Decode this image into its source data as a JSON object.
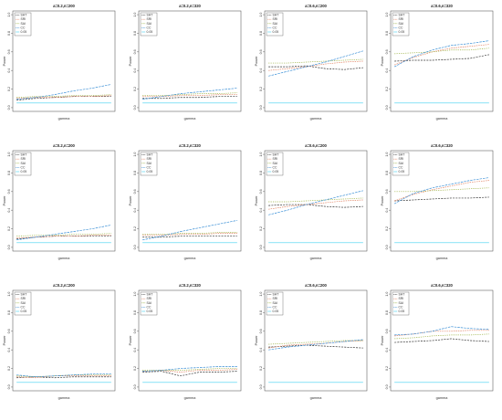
{
  "chart_data": [
    {
      "type": "line",
      "title": "a=0.2,n=200",
      "xlabel": "gamma",
      "ylabel": "Power",
      "ylim": [
        0,
        1
      ],
      "y_ticks": [
        "0.0",
        "0.2",
        "0.4",
        "0.6",
        "0.8",
        "1.0"
      ],
      "legend": [
        "SHT",
        "SRI",
        "SAI",
        "CC",
        "0.05"
      ],
      "x": [
        0,
        1,
        2,
        3,
        4,
        5
      ],
      "series": [
        {
          "name": "SHT",
          "color": "#333333",
          "values": [
            0.08,
            0.1,
            0.11,
            0.12,
            0.12,
            0.12
          ]
        },
        {
          "name": "SRI",
          "color": "#e08060",
          "values": [
            0.1,
            0.11,
            0.11,
            0.12,
            0.12,
            0.13
          ]
        },
        {
          "name": "SAI",
          "color": "#9ab040",
          "values": [
            0.11,
            0.12,
            0.12,
            0.13,
            0.13,
            0.14
          ]
        },
        {
          "name": "CC",
          "color": "#3a8fd6",
          "values": [
            0.09,
            0.11,
            0.14,
            0.18,
            0.21,
            0.25
          ]
        },
        {
          "name": "0.05",
          "color": "#40d0f0",
          "values": [
            0.05,
            0.05,
            0.05,
            0.05,
            0.05,
            0.05
          ]
        }
      ]
    },
    {
      "type": "line",
      "title": "a=0.2,n=320",
      "xlabel": "gamma",
      "ylabel": "Power",
      "ylim": [
        0,
        1
      ],
      "y_ticks": [
        "0.0",
        "0.2",
        "0.4",
        "0.6",
        "0.8",
        "1.0"
      ],
      "legend": [
        "SHT",
        "SRI",
        "SAI",
        "CC",
        "0.05"
      ],
      "x": [
        0,
        1,
        2,
        3,
        4,
        5
      ],
      "series": [
        {
          "name": "SHT",
          "color": "#333333",
          "values": [
            0.1,
            0.1,
            0.11,
            0.11,
            0.12,
            0.12
          ]
        },
        {
          "name": "SRI",
          "color": "#e08060",
          "values": [
            0.12,
            0.12,
            0.13,
            0.13,
            0.14,
            0.14
          ]
        },
        {
          "name": "SAI",
          "color": "#9ab040",
          "values": [
            0.13,
            0.13,
            0.14,
            0.15,
            0.15,
            0.16
          ]
        },
        {
          "name": "CC",
          "color": "#3a8fd6",
          "values": [
            0.09,
            0.12,
            0.15,
            0.17,
            0.19,
            0.21
          ]
        },
        {
          "name": "0.05",
          "color": "#40d0f0",
          "values": [
            0.05,
            0.05,
            0.05,
            0.05,
            0.05,
            0.05
          ]
        }
      ]
    },
    {
      "type": "line",
      "title": "a=0.6,n=200",
      "xlabel": "gamma",
      "ylabel": "Power",
      "ylim": [
        0,
        1
      ],
      "y_ticks": [
        "0.0",
        "0.2",
        "0.4",
        "0.6",
        "0.8",
        "1.0"
      ],
      "legend": [
        "SHT",
        "SRI",
        "SAI",
        "CC",
        "0.05"
      ],
      "x": [
        0,
        1,
        2,
        3,
        4,
        5
      ],
      "series": [
        {
          "name": "SHT",
          "color": "#333333",
          "values": [
            0.44,
            0.44,
            0.45,
            0.42,
            0.41,
            0.43
          ]
        },
        {
          "name": "SRI",
          "color": "#e08060",
          "values": [
            0.4,
            0.42,
            0.44,
            0.47,
            0.49,
            0.5
          ]
        },
        {
          "name": "SAI",
          "color": "#9ab040",
          "values": [
            0.48,
            0.48,
            0.49,
            0.5,
            0.51,
            0.52
          ]
        },
        {
          "name": "CC",
          "color": "#3a8fd6",
          "values": [
            0.34,
            0.39,
            0.44,
            0.49,
            0.55,
            0.61
          ]
        },
        {
          "name": "0.05",
          "color": "#40d0f0",
          "values": [
            0.05,
            0.05,
            0.05,
            0.05,
            0.05,
            0.05
          ]
        }
      ]
    },
    {
      "type": "line",
      "title": "a=0.6,n=320",
      "xlabel": "gamma",
      "ylabel": "Power",
      "ylim": [
        0,
        1
      ],
      "y_ticks": [
        "0.0",
        "0.2",
        "0.4",
        "0.6",
        "0.8",
        "1.0"
      ],
      "legend": [
        "SHT",
        "SRI",
        "SAI",
        "CC",
        "0.05"
      ],
      "x": [
        0,
        1,
        2,
        3,
        4,
        5
      ],
      "series": [
        {
          "name": "SHT",
          "color": "#333333",
          "values": [
            0.5,
            0.51,
            0.51,
            0.52,
            0.53,
            0.57
          ]
        },
        {
          "name": "SRI",
          "color": "#e08060",
          "values": [
            0.46,
            0.54,
            0.6,
            0.64,
            0.66,
            0.68
          ]
        },
        {
          "name": "SAI",
          "color": "#9ab040",
          "values": [
            0.58,
            0.59,
            0.6,
            0.62,
            0.62,
            0.64
          ]
        },
        {
          "name": "CC",
          "color": "#3a8fd6",
          "values": [
            0.44,
            0.55,
            0.62,
            0.67,
            0.69,
            0.72
          ]
        },
        {
          "name": "0.05",
          "color": "#40d0f0",
          "values": [
            0.05,
            0.05,
            0.05,
            0.05,
            0.05,
            0.05
          ]
        }
      ]
    },
    {
      "type": "line",
      "title": "a=0.2,n=200",
      "xlabel": "gamma",
      "ylabel": "Power",
      "ylim": [
        0,
        1
      ],
      "y_ticks": [
        "0.0",
        "0.2",
        "0.4",
        "0.6",
        "0.8",
        "1.0"
      ],
      "legend": [
        "SHT",
        "SRI",
        "SAI",
        "CC",
        "0.05"
      ],
      "x": [
        0,
        1,
        2,
        3,
        4,
        5
      ],
      "series": [
        {
          "name": "SHT",
          "color": "#333333",
          "values": [
            0.09,
            0.11,
            0.12,
            0.12,
            0.12,
            0.12
          ]
        },
        {
          "name": "SRI",
          "color": "#e08060",
          "values": [
            0.1,
            0.11,
            0.12,
            0.12,
            0.13,
            0.13
          ]
        },
        {
          "name": "SAI",
          "color": "#9ab040",
          "values": [
            0.12,
            0.13,
            0.13,
            0.14,
            0.14,
            0.15
          ]
        },
        {
          "name": "CC",
          "color": "#3a8fd6",
          "values": [
            0.08,
            0.11,
            0.14,
            0.17,
            0.2,
            0.24
          ]
        },
        {
          "name": "0.05",
          "color": "#40d0f0",
          "values": [
            0.05,
            0.05,
            0.05,
            0.05,
            0.05,
            0.05
          ]
        }
      ]
    },
    {
      "type": "line",
      "title": "a=0.2,n=320",
      "xlabel": "gamma",
      "ylabel": "Power",
      "ylim": [
        0,
        1
      ],
      "y_ticks": [
        "0.0",
        "0.2",
        "0.4",
        "0.6",
        "0.8",
        "1.0"
      ],
      "legend": [
        "SHT",
        "SRI",
        "SAI",
        "CC",
        "0.05"
      ],
      "x": [
        0,
        1,
        2,
        3,
        4,
        5
      ],
      "series": [
        {
          "name": "SHT",
          "color": "#333333",
          "values": [
            0.11,
            0.11,
            0.12,
            0.12,
            0.12,
            0.12
          ]
        },
        {
          "name": "SRI",
          "color": "#e08060",
          "values": [
            0.13,
            0.13,
            0.14,
            0.14,
            0.15,
            0.15
          ]
        },
        {
          "name": "SAI",
          "color": "#9ab040",
          "values": [
            0.14,
            0.14,
            0.15,
            0.15,
            0.16,
            0.16
          ]
        },
        {
          "name": "CC",
          "color": "#3a8fd6",
          "values": [
            0.08,
            0.12,
            0.17,
            0.21,
            0.25,
            0.29
          ]
        },
        {
          "name": "0.05",
          "color": "#40d0f0",
          "values": [
            0.05,
            0.05,
            0.05,
            0.05,
            0.05,
            0.05
          ]
        }
      ]
    },
    {
      "type": "line",
      "title": "a=0.6,n=200",
      "xlabel": "gamma",
      "ylabel": "Power",
      "ylim": [
        0,
        1
      ],
      "y_ticks": [
        "0.0",
        "0.2",
        "0.4",
        "0.6",
        "0.8",
        "1.0"
      ],
      "legend": [
        "SHT",
        "SRI",
        "SAI",
        "CC",
        "0.05"
      ],
      "x": [
        0,
        1,
        2,
        3,
        4,
        5
      ],
      "series": [
        {
          "name": "SHT",
          "color": "#333333",
          "values": [
            0.45,
            0.46,
            0.46,
            0.44,
            0.43,
            0.44
          ]
        },
        {
          "name": "SRI",
          "color": "#e08060",
          "values": [
            0.41,
            0.44,
            0.46,
            0.48,
            0.5,
            0.51
          ]
        },
        {
          "name": "SAI",
          "color": "#9ab040",
          "values": [
            0.49,
            0.49,
            0.5,
            0.51,
            0.52,
            0.53
          ]
        },
        {
          "name": "CC",
          "color": "#3a8fd6",
          "values": [
            0.35,
            0.4,
            0.46,
            0.51,
            0.56,
            0.61
          ]
        },
        {
          "name": "0.05",
          "color": "#40d0f0",
          "values": [
            0.05,
            0.05,
            0.05,
            0.05,
            0.05,
            0.05
          ]
        }
      ]
    },
    {
      "type": "line",
      "title": "a=0.6,n=320",
      "xlabel": "gamma",
      "ylabel": "Power",
      "ylim": [
        0,
        1
      ],
      "y_ticks": [
        "0.0",
        "0.2",
        "0.4",
        "0.6",
        "0.8",
        "1.0"
      ],
      "legend": [
        "SHT",
        "SRI",
        "SAI",
        "CC",
        "0.05"
      ],
      "x": [
        0,
        1,
        2,
        3,
        4,
        5
      ],
      "series": [
        {
          "name": "SHT",
          "color": "#333333",
          "values": [
            0.5,
            0.51,
            0.52,
            0.53,
            0.53,
            0.54
          ]
        },
        {
          "name": "SRI",
          "color": "#e08060",
          "values": [
            0.5,
            0.57,
            0.62,
            0.66,
            0.7,
            0.72
          ]
        },
        {
          "name": "SAI",
          "color": "#9ab040",
          "values": [
            0.6,
            0.6,
            0.61,
            0.62,
            0.63,
            0.64
          ]
        },
        {
          "name": "CC",
          "color": "#3a8fd6",
          "values": [
            0.47,
            0.58,
            0.64,
            0.68,
            0.72,
            0.75
          ]
        },
        {
          "name": "0.05",
          "color": "#40d0f0",
          "values": [
            0.05,
            0.05,
            0.05,
            0.05,
            0.05,
            0.05
          ]
        }
      ]
    },
    {
      "type": "line",
      "title": "a=0.2,n=200",
      "xlabel": "gamma",
      "ylabel": "Power",
      "ylim": [
        0,
        1
      ],
      "y_ticks": [
        "0.0",
        "0.2",
        "0.4",
        "0.6",
        "0.8",
        "1.0"
      ],
      "legend": [
        "SHT",
        "SRI",
        "SAI",
        "CC",
        "0.05"
      ],
      "x": [
        0,
        1,
        2,
        3,
        4,
        5
      ],
      "series": [
        {
          "name": "SHT",
          "color": "#333333",
          "values": [
            0.1,
            0.11,
            0.1,
            0.11,
            0.11,
            0.11
          ]
        },
        {
          "name": "SRI",
          "color": "#e08060",
          "values": [
            0.11,
            0.1,
            0.12,
            0.12,
            0.12,
            0.12
          ]
        },
        {
          "name": "SAI",
          "color": "#9ab040",
          "values": [
            0.12,
            0.11,
            0.12,
            0.13,
            0.13,
            0.13
          ]
        },
        {
          "name": "CC",
          "color": "#3a8fd6",
          "values": [
            0.13,
            0.11,
            0.12,
            0.13,
            0.14,
            0.14
          ]
        },
        {
          "name": "0.05",
          "color": "#40d0f0",
          "values": [
            0.05,
            0.05,
            0.05,
            0.05,
            0.05,
            0.05
          ]
        }
      ]
    },
    {
      "type": "line",
      "title": "a=0.2,n=320",
      "xlabel": "gamma",
      "ylabel": "Power",
      "ylim": [
        0,
        1
      ],
      "y_ticks": [
        "0.0",
        "0.2",
        "0.4",
        "0.6",
        "0.8",
        "1.0"
      ],
      "legend": [
        "SHT",
        "SRI",
        "SAI",
        "CC",
        "0.05"
      ],
      "x": [
        0,
        1,
        2,
        3,
        4,
        5
      ],
      "series": [
        {
          "name": "SHT",
          "color": "#333333",
          "values": [
            0.16,
            0.17,
            0.12,
            0.16,
            0.16,
            0.17
          ]
        },
        {
          "name": "SRI",
          "color": "#e08060",
          "values": [
            0.17,
            0.18,
            0.16,
            0.18,
            0.18,
            0.19
          ]
        },
        {
          "name": "SAI",
          "color": "#9ab040",
          "values": [
            0.18,
            0.18,
            0.18,
            0.19,
            0.2,
            0.2
          ]
        },
        {
          "name": "CC",
          "color": "#3a8fd6",
          "values": [
            0.17,
            0.18,
            0.2,
            0.21,
            0.22,
            0.22
          ]
        },
        {
          "name": "0.05",
          "color": "#40d0f0",
          "values": [
            0.05,
            0.05,
            0.05,
            0.05,
            0.05,
            0.05
          ]
        }
      ]
    },
    {
      "type": "line",
      "title": "a=0.6,n=200",
      "xlabel": "gamma",
      "ylabel": "Power",
      "ylim": [
        0,
        1
      ],
      "y_ticks": [
        "0.0",
        "0.2",
        "0.4",
        "0.6",
        "0.8",
        "1.0"
      ],
      "legend": [
        "SHT",
        "SRI",
        "SAI",
        "CC",
        "0.05"
      ],
      "x": [
        0,
        1,
        2,
        3,
        4,
        5
      ],
      "series": [
        {
          "name": "SHT",
          "color": "#333333",
          "values": [
            0.43,
            0.44,
            0.45,
            0.44,
            0.43,
            0.42
          ]
        },
        {
          "name": "SRI",
          "color": "#e08060",
          "values": [
            0.42,
            0.45,
            0.46,
            0.47,
            0.49,
            0.5
          ]
        },
        {
          "name": "SAI",
          "color": "#9ab040",
          "values": [
            0.46,
            0.47,
            0.48,
            0.49,
            0.5,
            0.5
          ]
        },
        {
          "name": "CC",
          "color": "#3a8fd6",
          "values": [
            0.4,
            0.43,
            0.45,
            0.47,
            0.49,
            0.51
          ]
        },
        {
          "name": "0.05",
          "color": "#40d0f0",
          "values": [
            0.05,
            0.05,
            0.05,
            0.05,
            0.05,
            0.05
          ]
        }
      ]
    },
    {
      "type": "line",
      "title": "a=0.6,n=320",
      "xlabel": "gamma",
      "ylabel": "Power",
      "ylim": [
        0,
        1
      ],
      "y_ticks": [
        "0.0",
        "0.2",
        "0.4",
        "0.6",
        "0.8",
        "1.0"
      ],
      "legend": [
        "SHT",
        "SRI",
        "SAI",
        "CC",
        "0.05"
      ],
      "x": [
        0,
        1,
        2,
        3,
        4,
        5
      ],
      "series": [
        {
          "name": "SHT",
          "color": "#333333",
          "values": [
            0.48,
            0.49,
            0.5,
            0.52,
            0.5,
            0.49
          ]
        },
        {
          "name": "SRI",
          "color": "#e08060",
          "values": [
            0.55,
            0.57,
            0.6,
            0.6,
            0.61,
            0.61
          ]
        },
        {
          "name": "SAI",
          "color": "#9ab040",
          "values": [
            0.52,
            0.53,
            0.55,
            0.56,
            0.56,
            0.57
          ]
        },
        {
          "name": "CC",
          "color": "#3a8fd6",
          "values": [
            0.56,
            0.57,
            0.6,
            0.65,
            0.63,
            0.62
          ]
        },
        {
          "name": "0.05",
          "color": "#40d0f0",
          "values": [
            0.05,
            0.05,
            0.05,
            0.05,
            0.05,
            0.05
          ]
        }
      ]
    }
  ]
}
